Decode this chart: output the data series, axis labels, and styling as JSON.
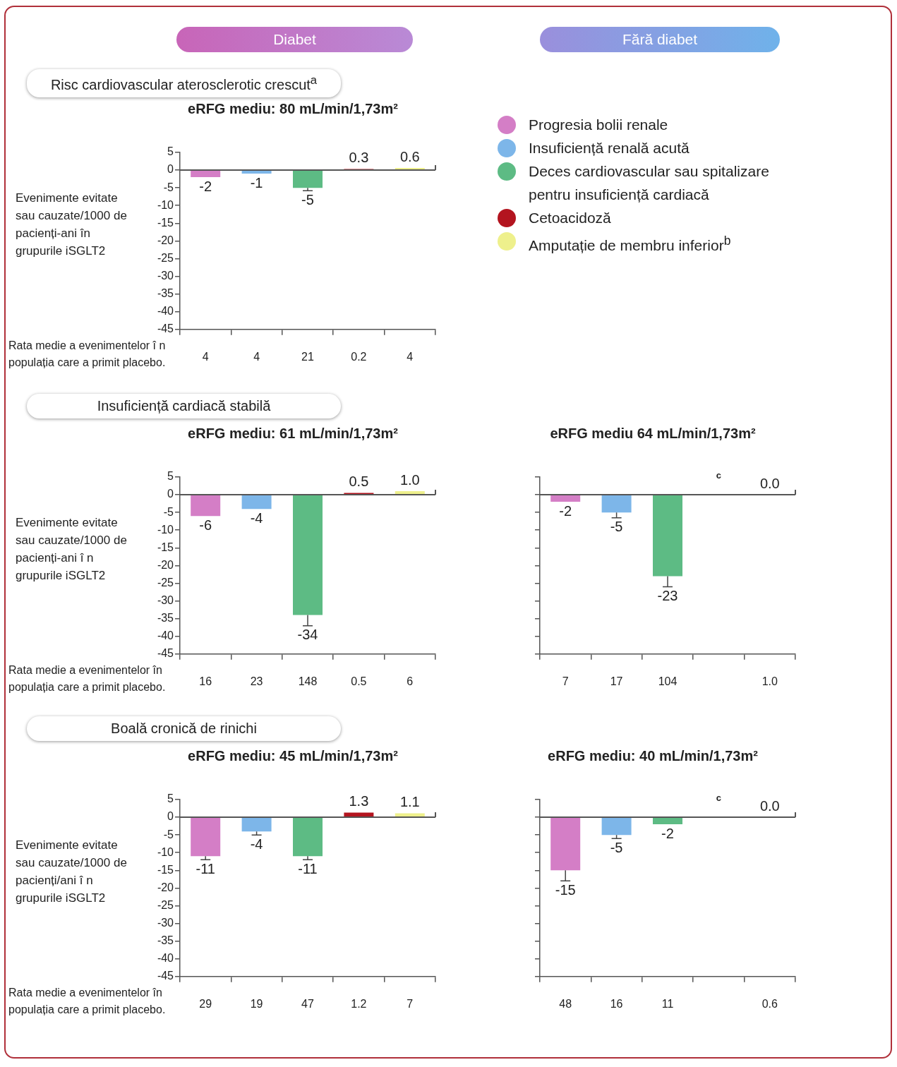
{
  "chart_data": [
    {
      "type": "bar",
      "title": "eRFG mediu: 80 mL/min/1,73m²",
      "subtitle": "Risc cardiovascular aterosclerotic crescut$^{a}$",
      "ylabel": "Evenimente evitate sau cauzate/1000 de pacienți-ani în grupurile iSGLT2",
      "xlabel": "Rata medie a evenimentelor î n populația care a primit placebo.",
      "categories": [
        "4",
        "4",
        "21",
        "0.2",
        "4"
      ],
      "ylim": [
        -45,
        5
      ],
      "yticks": [
        -45,
        -40,
        -35,
        -30,
        -25,
        -20,
        -15,
        -10,
        -5,
        0,
        5
      ],
      "legend": "right",
      "annotations": [
        "Diabet",
        "Fără diabet"
      ],
      "series": [
        {
          "name": "Progresia bolii renale",
          "color": "#d47ec6",
          "values": [
            -2,
            null,
            null,
            null,
            null
          ],
          "value_labels": [
            "-2",
            null,
            null,
            null,
            null
          ]
        },
        {
          "name": "Insuficiență renală acută",
          "color": "#7db6e9",
          "values": [
            null,
            -1,
            null,
            null,
            null
          ],
          "value_labels": [
            null,
            "-1",
            null,
            null,
            null
          ]
        },
        {
          "name": "Deces cardiovascular sau spitalizare pentru insuficiență cardiacă",
          "color": "#5dbb84",
          "values": [
            null,
            null,
            -5,
            null,
            null
          ],
          "value_labels": [
            null,
            null,
            "-5",
            null,
            null
          ],
          "errors": [
            null,
            null,
            [
              -5.8,
              -5
            ],
            null,
            null
          ]
        },
        {
          "name": "Cetoacidoză",
          "color": "#b3141f",
          "values": [
            null,
            null,
            null,
            0.3,
            null
          ],
          "value_labels": [
            null,
            null,
            null,
            "0.3",
            null
          ]
        },
        {
          "name": "Amputație de membru inferior$^{b}$",
          "color": "#eef08c",
          "values": [
            null,
            null,
            null,
            null,
            0.6
          ],
          "value_labels": [
            null,
            null,
            null,
            null,
            "0.6"
          ]
        }
      ]
    },
    {
      "type": "bar",
      "title": "eRFG mediu: 61 mL/min/1,73m²",
      "subtitle": "Insuficiență cardiacă stabilă",
      "ylabel": "Evenimente evitate sau cauzate/1000 de pacienți-ani î n grupurile iSGLT2",
      "xlabel": "Rata medie a evenimentelor în populația care a primit placebo.",
      "categories": [
        "16",
        "23",
        "148",
        "0.5",
        "6"
      ],
      "ylim": [
        -45,
        5
      ],
      "yticks": [
        -45,
        -40,
        -35,
        -30,
        -25,
        -20,
        -15,
        -10,
        -5,
        0,
        5
      ],
      "series": [
        {
          "color": "#d47ec6",
          "values": [
            -6,
            null,
            null,
            null,
            null
          ],
          "value_labels": [
            "-6",
            null,
            null,
            null,
            null
          ]
        },
        {
          "color": "#7db6e9",
          "values": [
            null,
            -4,
            null,
            null,
            null
          ],
          "value_labels": [
            null,
            "-4",
            null,
            null,
            null
          ]
        },
        {
          "color": "#5dbb84",
          "values": [
            null,
            null,
            -34,
            null,
            null
          ],
          "value_labels": [
            null,
            null,
            "-34",
            null,
            null
          ],
          "errors": [
            null,
            null,
            [
              -37,
              -34
            ],
            null,
            null
          ]
        },
        {
          "color": "#b3141f",
          "values": [
            null,
            null,
            null,
            0.5,
            null
          ],
          "value_labels": [
            null,
            null,
            null,
            "0.5",
            null
          ]
        },
        {
          "color": "#eef08c",
          "values": [
            null,
            null,
            null,
            null,
            1.0
          ],
          "value_labels": [
            null,
            null,
            null,
            null,
            "1.0"
          ]
        }
      ]
    },
    {
      "type": "bar",
      "title": "eRFG mediu 64 mL/min/1,73m²",
      "categories": [
        "7",
        "17",
        "104",
        null,
        "1.0"
      ],
      "ylim": [
        -45,
        5
      ],
      "yticks": [
        -45,
        -40,
        -35,
        -30,
        -25,
        -20,
        -15,
        -10,
        -5,
        0,
        5
      ],
      "tick_labels": "x",
      "series": [
        {
          "color": "#d47ec6",
          "values": [
            -2,
            null,
            null,
            null,
            null
          ],
          "value_labels": [
            "-2",
            null,
            null,
            null,
            null
          ]
        },
        {
          "color": "#7db6e9",
          "values": [
            null,
            -5,
            null,
            null,
            null
          ],
          "value_labels": [
            null,
            "-5",
            null,
            null,
            null
          ],
          "errors": [
            null,
            [
              -6.5,
              -5
            ],
            null,
            null,
            null
          ]
        },
        {
          "color": "#5dbb84",
          "values": [
            null,
            null,
            -23,
            null,
            null
          ],
          "value_labels": [
            null,
            null,
            "-23",
            null,
            null
          ],
          "errors": [
            null,
            null,
            [
              -26,
              -23
            ],
            null,
            null
          ]
        },
        {
          "color": "#b3141f",
          "values": [
            null,
            null,
            null,
            null,
            null
          ],
          "value_labels": [
            null,
            null,
            null,
            "c",
            null
          ]
        },
        {
          "color": "#eef08c",
          "values": [
            null,
            null,
            null,
            null,
            0.0
          ],
          "value_labels": [
            null,
            null,
            null,
            null,
            "0.0"
          ]
        }
      ]
    },
    {
      "type": "bar",
      "title": "eRFG mediu: 45 mL/min/1,73m²",
      "subtitle": "Boală cronică de rinichi",
      "ylabel": "Evenimente evitate sau cauzate/1000 de pacienți/ani î n grupurile iSGLT2",
      "xlabel": "Rata medie a evenimentelor în populația care a primit placebo.",
      "categories": [
        "29",
        "19",
        "47",
        "1.2",
        "7"
      ],
      "ylim": [
        -45,
        5
      ],
      "yticks": [
        -45,
        -40,
        -35,
        -30,
        -25,
        -20,
        -15,
        -10,
        -5,
        0,
        5
      ],
      "series": [
        {
          "color": "#d47ec6",
          "values": [
            -11,
            null,
            null,
            null,
            null
          ],
          "value_labels": [
            "-11",
            null,
            null,
            null,
            null
          ],
          "errors": [
            [
              -12,
              -11
            ],
            null,
            null,
            null,
            null
          ]
        },
        {
          "color": "#7db6e9",
          "values": [
            null,
            -4,
            null,
            null,
            null
          ],
          "value_labels": [
            null,
            "-4",
            null,
            null,
            null
          ],
          "errors": [
            null,
            [
              -5,
              -4
            ],
            null,
            null,
            null
          ]
        },
        {
          "color": "#5dbb84",
          "values": [
            null,
            null,
            -11,
            null,
            null
          ],
          "value_labels": [
            null,
            null,
            "-11",
            null,
            null
          ],
          "errors": [
            null,
            null,
            [
              -12,
              -11
            ],
            null,
            null
          ]
        },
        {
          "color": "#b3141f",
          "values": [
            null,
            null,
            null,
            1.3,
            null
          ],
          "value_labels": [
            null,
            null,
            null,
            "1.3",
            null
          ]
        },
        {
          "color": "#eef08c",
          "values": [
            null,
            null,
            null,
            null,
            1.1
          ],
          "value_labels": [
            null,
            null,
            null,
            null,
            "1.1"
          ]
        }
      ]
    },
    {
      "type": "bar",
      "title": "eRFG mediu: 40 mL/min/1,73m²",
      "categories": [
        "48",
        "16",
        "11",
        null,
        "0.6"
      ],
      "ylim": [
        -45,
        5
      ],
      "yticks": [
        -45,
        -40,
        -35,
        -30,
        -25,
        -20,
        -15,
        -10,
        -5,
        0,
        5
      ],
      "tick_labels": "x",
      "series": [
        {
          "color": "#d47ec6",
          "values": [
            -15,
            null,
            null,
            null,
            null
          ],
          "value_labels": [
            "-15",
            null,
            null,
            null,
            null
          ],
          "errors": [
            [
              -18,
              -15
            ],
            null,
            null,
            null,
            null
          ]
        },
        {
          "color": "#7db6e9",
          "values": [
            null,
            -5,
            null,
            null,
            null
          ],
          "value_labels": [
            null,
            "-5",
            null,
            null,
            null
          ],
          "errors": [
            null,
            [
              -6,
              -5
            ],
            null,
            null,
            null
          ]
        },
        {
          "color": "#5dbb84",
          "values": [
            null,
            null,
            -2,
            null,
            null
          ],
          "value_labels": [
            null,
            null,
            "-2",
            null,
            null
          ]
        },
        {
          "color": "#b3141f",
          "values": [
            null,
            null,
            null,
            null,
            null
          ],
          "value_labels": [
            null,
            null,
            null,
            "c",
            null
          ]
        },
        {
          "color": "#eef08c",
          "values": [
            null,
            null,
            null,
            null,
            0.0
          ],
          "value_labels": [
            null,
            null,
            null,
            null,
            "0.0"
          ]
        }
      ]
    }
  ]
}
